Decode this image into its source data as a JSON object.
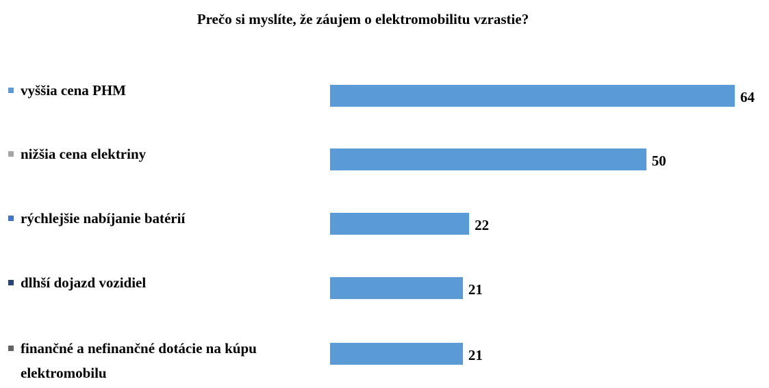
{
  "chart_data": {
    "type": "bar",
    "orientation": "horizontal",
    "title": "Prečo si myslíte, že záujem  o elektromobilitu  vzrastie?",
    "categories": [
      "vyššia cena PHM",
      "nižšia cena elektriny",
      "rýchlejšie nabíjanie batérií",
      "dlhší dojazd vozidiel",
      "finančné a nefinančné dotácie na kúpu elektromobilu"
    ],
    "values": [
      64,
      50,
      22,
      21,
      21
    ],
    "color": "#5b9bd5",
    "legend_colors": [
      "#5b9bd5",
      "#a5a5a5",
      "#4472c4",
      "#264478",
      "#636363"
    ]
  }
}
